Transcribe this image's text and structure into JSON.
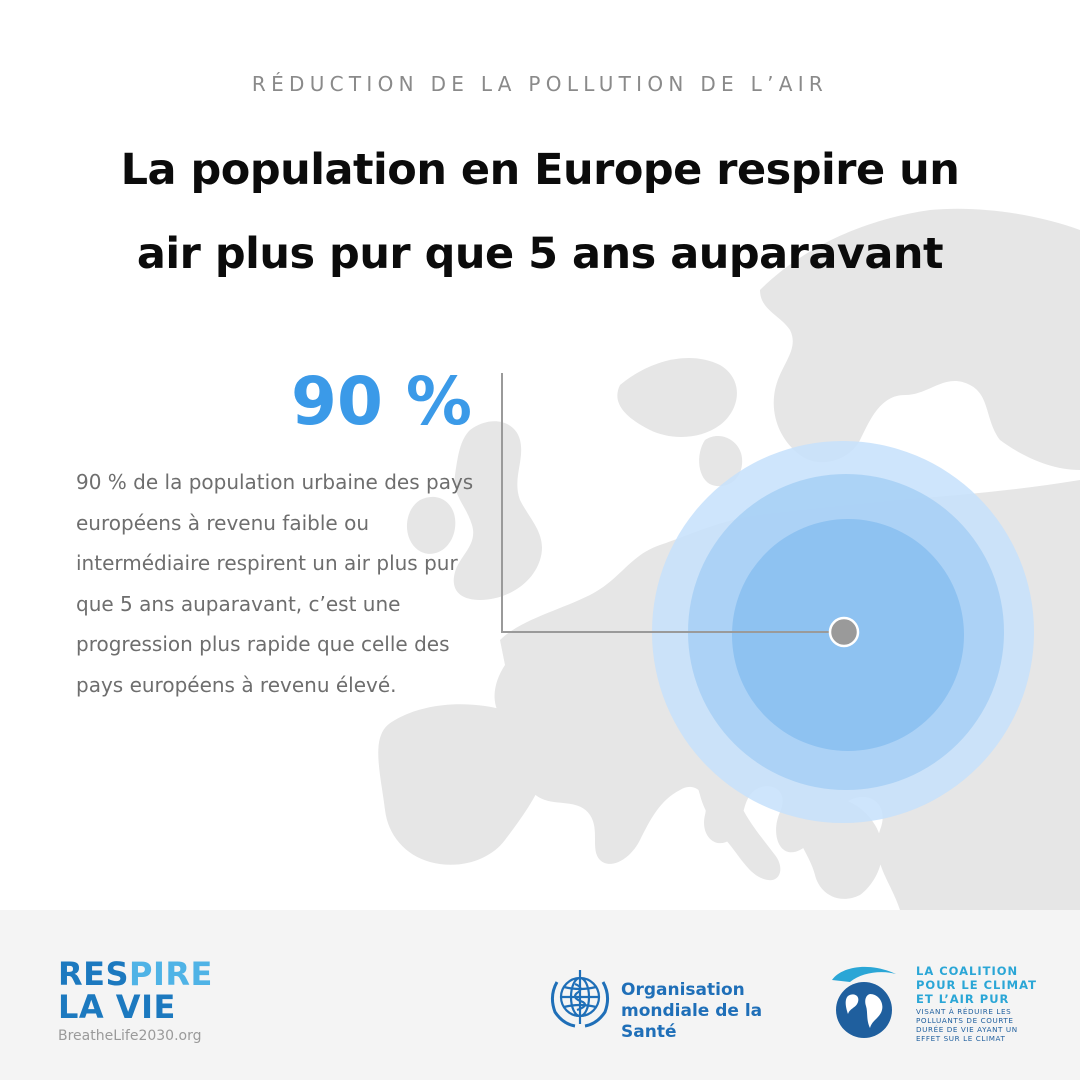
{
  "header": {
    "kicker": "RÉDUCTION DE LA POLLUTION DE L’AIR",
    "title_line1": "La population en Europe respire un",
    "title_line2": "air plus pur que 5 ans auparavant"
  },
  "stat": {
    "value": "90 %",
    "description": "90 % de la population urbaine des pays européens à revenu faible ou intermédiaire respirent un air plus pur que 5 ans auparavant, c’est une progression plus rapide que celle des pays européens à revenu élevé."
  },
  "colors": {
    "accent": "#3b9ae8",
    "map_land": "#e6e6e6",
    "ring_outer": "#c6e1fb",
    "ring_mid": "#a9d0f5",
    "ring_inner": "#8ec2f1",
    "pin": "#9a9a9a",
    "footer_bg": "#f4f4f4"
  },
  "footer": {
    "breathelife": {
      "word1_a": "RES",
      "word1_b": "PIRE",
      "word2": "LA VIE",
      "url": "BreatheLife2030.org"
    },
    "who": {
      "icon": "who-emblem-icon",
      "line1": "Organisation",
      "line2": "mondiale de la Santé"
    },
    "ccac": {
      "icon": "globe-icon",
      "head1": "LA COALITION",
      "head2": "POUR LE CLIMAT",
      "head3": "ET L’AIR PUR",
      "sub1": "VISANT À RÉDUIRE LES",
      "sub2": "POLLUANTS DE COURTE",
      "sub3": "DURÉE DE VIE AYANT UN",
      "sub4": "EFFET SUR LE CLIMAT"
    }
  }
}
